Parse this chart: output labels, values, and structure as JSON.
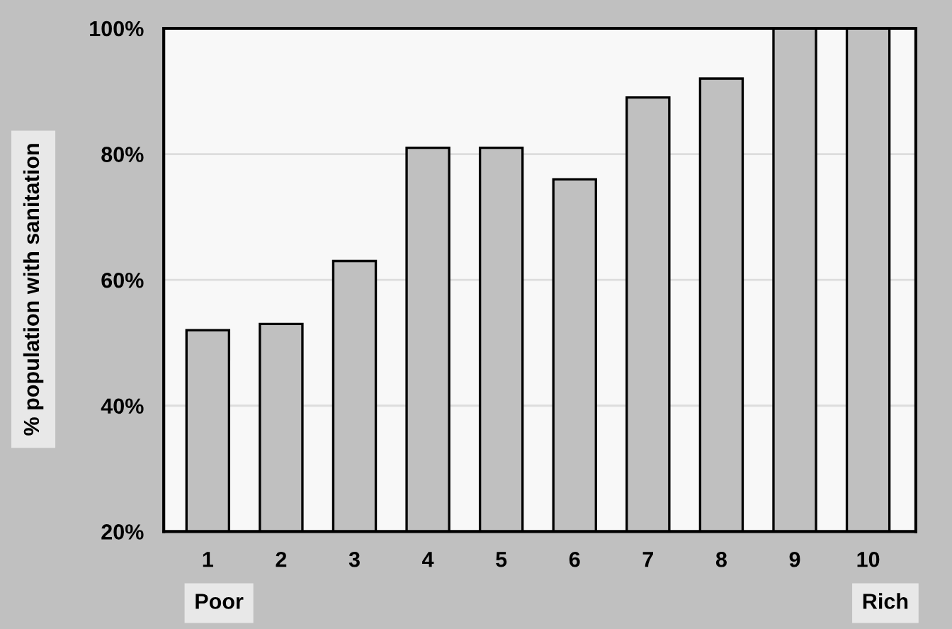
{
  "chart_data": {
    "type": "bar",
    "ylabel": "% population with sanitation",
    "categories": [
      "1",
      "2",
      "3",
      "4",
      "5",
      "6",
      "7",
      "8",
      "9",
      "10"
    ],
    "values": [
      52,
      53,
      63,
      81,
      81,
      76,
      89,
      92,
      100,
      100
    ],
    "color": "#c0c0c0",
    "ylim": [
      20,
      100
    ],
    "yticks": [
      {
        "value": 20,
        "label": "20%"
      },
      {
        "value": 40,
        "label": "40%"
      },
      {
        "value": 60,
        "label": "60%"
      },
      {
        "value": 80,
        "label": "80%"
      },
      {
        "value": 100,
        "label": "100%"
      }
    ],
    "grid": "y",
    "legend": false,
    "annotations": [
      "Poor",
      "Rich"
    ]
  }
}
